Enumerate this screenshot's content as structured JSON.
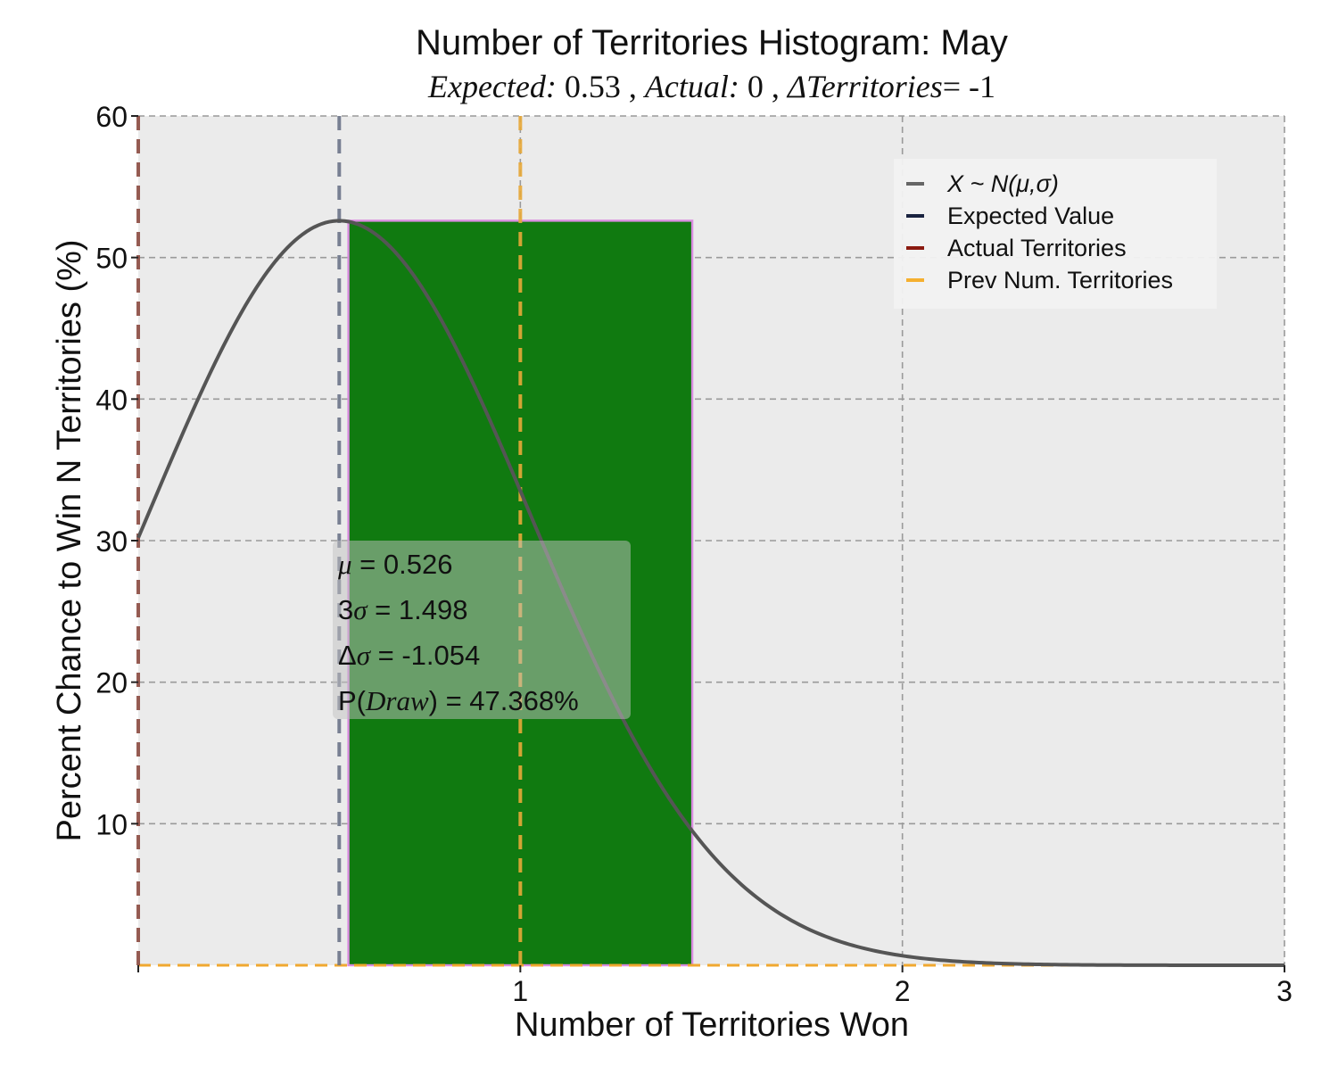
{
  "chart_data": {
    "type": "bar",
    "title": "Number of Territories Histogram: May",
    "subtitle": {
      "expected_label": "Expected:",
      "expected_value": "0.53",
      "actual_label": "Actual:",
      "actual_value": "0",
      "delta_label": "ΔTerritories",
      "delta_value": "= -1",
      "separator": ","
    },
    "xlabel": "Number of Territories Won",
    "ylabel": "Percent Chance to Win N Territories (%)",
    "xlim": [
      0,
      3
    ],
    "ylim": [
      0,
      60
    ],
    "x_ticks": [
      1,
      2,
      3
    ],
    "y_ticks": [
      10,
      20,
      30,
      40,
      50,
      60
    ],
    "grid": true,
    "background_color": "#ebebeb",
    "bars": [
      {
        "x_start": 0.55,
        "x_end": 1.45,
        "value": 52.6,
        "color": "#107a10",
        "edge_color": "#d98ce0"
      },
      {
        "x_start": 1.45,
        "x_end": 2.2,
        "value": 0,
        "color": "#107a10",
        "edge_color": "#d98ce0"
      }
    ],
    "distribution": {
      "name": "X ~ N(μ,σ)",
      "mean": 0.526,
      "std": 0.4993,
      "peak": 52.6,
      "x_range": [
        0,
        3
      ],
      "color": "#555555"
    },
    "vertical_lines": [
      {
        "name": "Expected Value",
        "x": 0.526,
        "color": "#6c7388"
      },
      {
        "name": "Actual Territories",
        "x": 0,
        "color": "#8b4a40"
      },
      {
        "name": "Prev Num. Territories",
        "x": 1,
        "color": "#e8a838"
      }
    ],
    "baseline": {
      "y": 0,
      "color": "#f0a830"
    },
    "legend": {
      "position": "top-right",
      "entries": [
        {
          "label": "X ~ N(μ,σ)",
          "color": "#666666"
        },
        {
          "label": "Expected Value",
          "color": "#1a2340"
        },
        {
          "label": "Actual Territories",
          "color": "#8b1a10"
        },
        {
          "label": "Prev Num. Territories",
          "color": "#f5b030"
        }
      ]
    },
    "stats_box": {
      "lines": [
        {
          "sym": "μ",
          "text": " = 0.526"
        },
        {
          "pre": "3",
          "sym": "σ",
          "text": " = 1.498"
        },
        {
          "pre": "Δ",
          "sym": "σ",
          "text": " = -1.054"
        },
        {
          "pre": "P(",
          "sym": "Draw",
          "text": ") = 47.368%"
        }
      ]
    }
  }
}
